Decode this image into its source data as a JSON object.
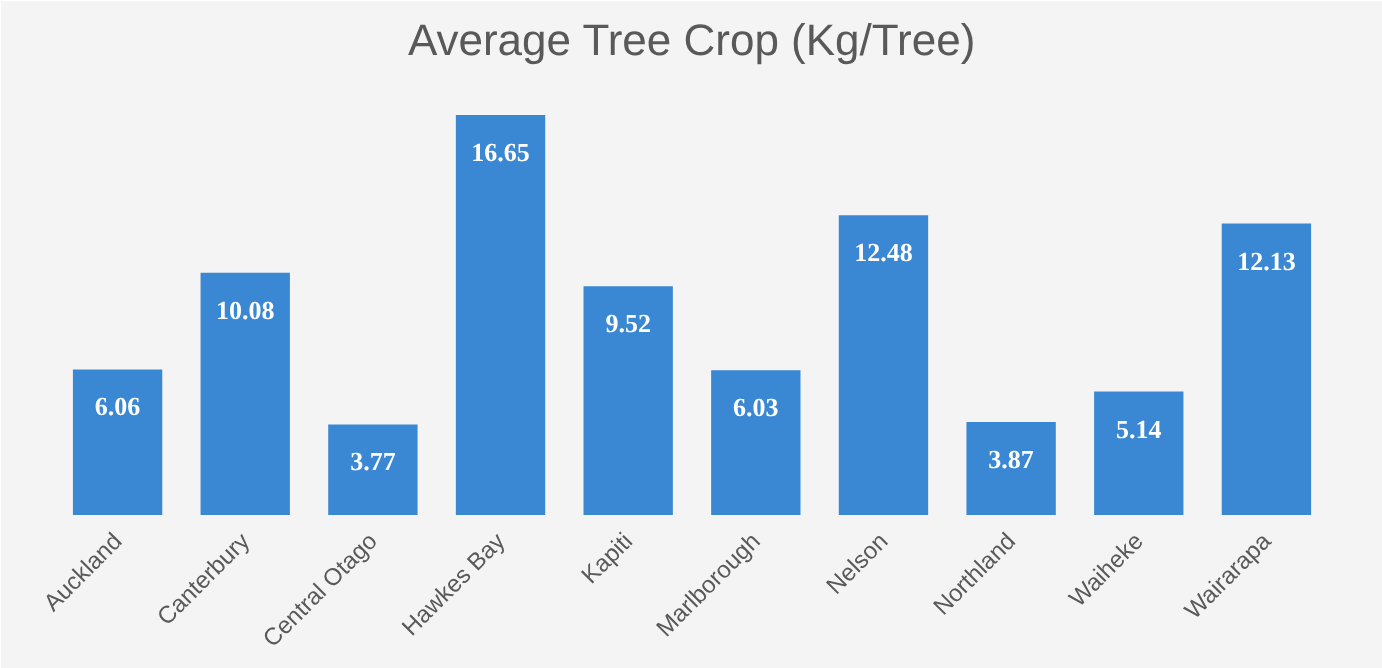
{
  "chart_data": {
    "type": "bar",
    "title": "Average Tree Crop (Kg/Tree)",
    "categories": [
      "Auckland",
      "Canterbury",
      "Central Otago",
      "Hawkes Bay",
      "Kapiti",
      "Marlborough",
      "Nelson",
      "Northland",
      "Waiheke",
      "Wairarapa"
    ],
    "values": [
      6.06,
      10.08,
      3.77,
      16.65,
      9.52,
      6.03,
      12.48,
      3.87,
      5.14,
      12.13
    ],
    "color": "#3a87d4",
    "data_labels": true,
    "tick_labels": "x"
  }
}
